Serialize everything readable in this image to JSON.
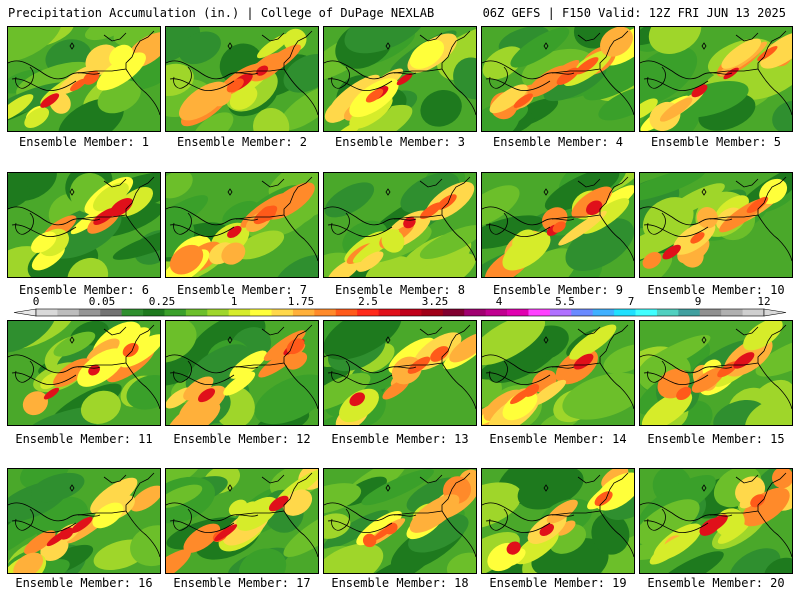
{
  "header": {
    "left": "Precipitation Accumulation (in.) | College of DuPage NEXLAB",
    "right": "06Z GEFS | F150 Valid: 12Z FRI JUN 13 2025"
  },
  "panels": [
    {
      "label": "Ensemble Member: 1"
    },
    {
      "label": "Ensemble Member: 2"
    },
    {
      "label": "Ensemble Member: 3"
    },
    {
      "label": "Ensemble Member: 4"
    },
    {
      "label": "Ensemble Member: 5"
    },
    {
      "label": "Ensemble Member: 6"
    },
    {
      "label": "Ensemble Member: 7"
    },
    {
      "label": "Ensemble Member: 8"
    },
    {
      "label": "Ensemble Member: 9"
    },
    {
      "label": "Ensemble Member: 10"
    },
    {
      "label": "Ensemble Member: 11"
    },
    {
      "label": "Ensemble Member: 12"
    },
    {
      "label": "Ensemble Member: 13"
    },
    {
      "label": "Ensemble Member: 14"
    },
    {
      "label": "Ensemble Member: 15"
    },
    {
      "label": "Ensemble Member: 16"
    },
    {
      "label": "Ensemble Member: 17"
    },
    {
      "label": "Ensemble Member: 18"
    },
    {
      "label": "Ensemble Member: 19"
    },
    {
      "label": "Ensemble Member: 20"
    }
  ],
  "colorbar": {
    "ticks": [
      "0",
      "0.05",
      "0.25",
      "1",
      "1.75",
      "2.5",
      "3.25",
      "4",
      "5.5",
      "7",
      "9",
      "12"
    ],
    "colors": [
      "#d9d9d9",
      "#bdbdbd",
      "#969696",
      "#737373",
      "#2f8f2f",
      "#1e7a1e",
      "#3aa02a",
      "#6cbf2a",
      "#9fd62a",
      "#d6ec2a",
      "#ffff3a",
      "#ffd84a",
      "#ffb03a",
      "#ff8a2a",
      "#ff5a1a",
      "#ff2a1a",
      "#e0101a",
      "#c0001a",
      "#a00018",
      "#800030",
      "#a00070",
      "#c00090",
      "#e000b0",
      "#ff40ff",
      "#b070ff",
      "#6a8aff",
      "#40b0ff",
      "#20e0ff",
      "#40ffff",
      "#50d0c0",
      "#40a0a0",
      "#909090",
      "#b0b0b0",
      "#cfcfcf"
    ]
  }
}
